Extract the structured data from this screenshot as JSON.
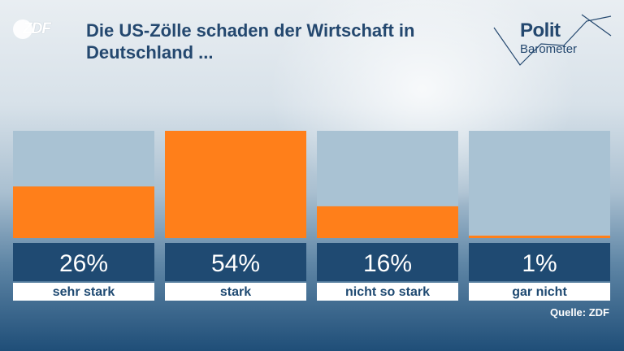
{
  "brand": {
    "logo_text": "ZDF"
  },
  "header": {
    "title_line1": "Die US-Zölle schaden der Wirtschaft in",
    "title_line2": "Deutschland ..."
  },
  "politbarometer": {
    "line1": "Polit",
    "line2": "Barometer"
  },
  "chart_data": {
    "type": "bar",
    "title": "Die US-Zölle schaden der Wirtschaft in Deutschland ...",
    "categories": [
      "sehr stark",
      "stark",
      "nicht so stark",
      "gar nicht"
    ],
    "values": [
      26,
      54,
      16,
      1
    ],
    "value_labels": [
      "26%",
      "54%",
      "16%",
      "1%"
    ],
    "ylim": [
      0,
      54
    ],
    "unit": "%",
    "colors": {
      "bar": "#ff7f1a",
      "track": "#a9c2d3",
      "value_box": "#1f4a72",
      "label_box": "#ffffff"
    }
  },
  "footer": {
    "source": "Quelle: ZDF"
  }
}
